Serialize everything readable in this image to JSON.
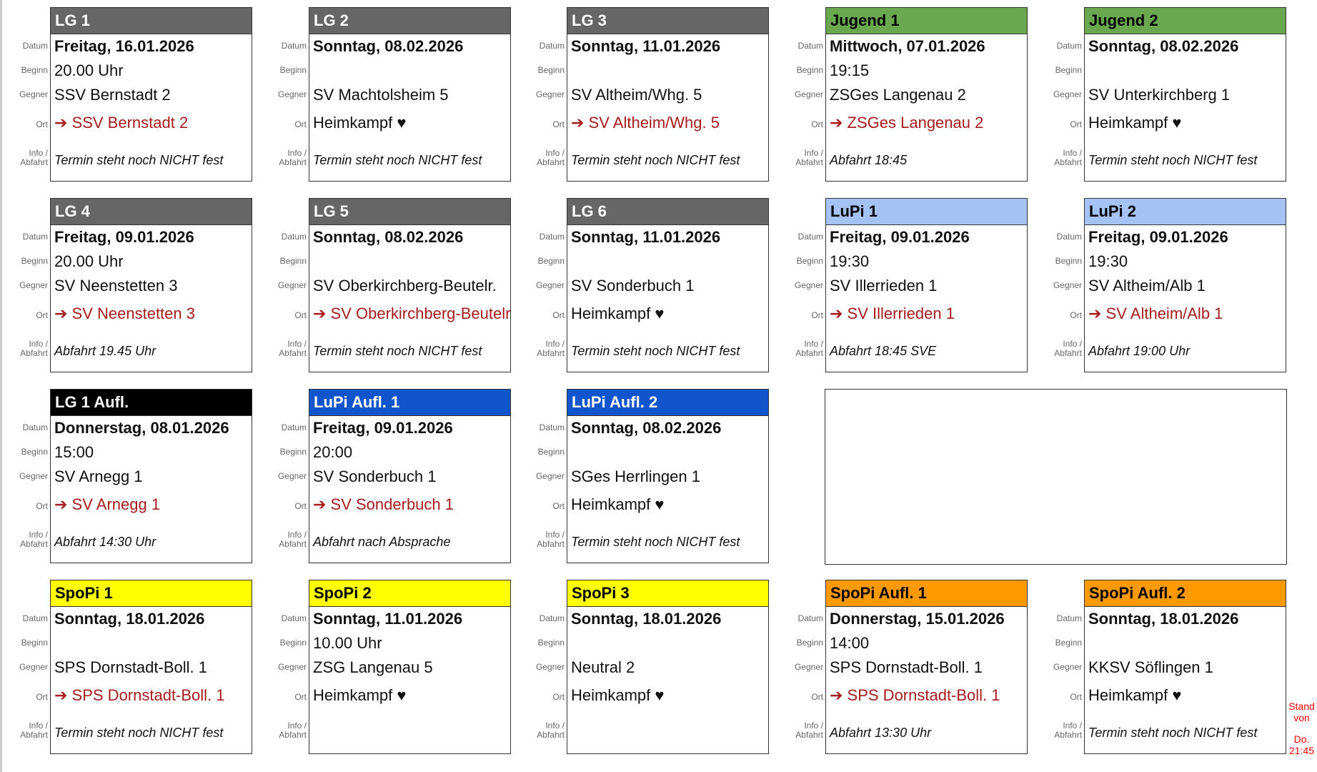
{
  "labels": {
    "date": "Datum",
    "begin": "Beginn",
    "opponent": "Gegner",
    "location": "Ort",
    "info": "Info /",
    "info2": "Abfahrt"
  },
  "cards": [
    {
      "team": "LG 1",
      "header_color": "#666666",
      "header_text": "#ffffff",
      "date": "Freitag, 16.01.2026",
      "begin": "20.00 Uhr",
      "opponent": "SSV Bernstadt 2",
      "location": "➔ SSV Bernstadt 2",
      "away": true,
      "info": "Termin steht noch NICHT fest"
    },
    {
      "team": "LG 2",
      "header_color": "#666666",
      "header_text": "#ffffff",
      "date": "Sonntag, 08.02.2026",
      "begin": "",
      "opponent": "SV Machtolsheim 5",
      "location": "Heimkampf ♥",
      "away": false,
      "info": "Termin steht noch NICHT fest"
    },
    {
      "team": "LG 3",
      "header_color": "#666666",
      "header_text": "#ffffff",
      "date": "Sonntag, 11.01.2026",
      "begin": "",
      "opponent": "SV Altheim/Whg. 5",
      "location": "➔ SV Altheim/Whg. 5",
      "away": true,
      "info": "Termin steht noch NICHT fest"
    },
    {
      "team": "Jugend 1",
      "header_color": "#6aa84f",
      "header_text": "#000000",
      "date": "Mittwoch, 07.01.2026",
      "begin": "19:15",
      "opponent": "ZSGes Langenau 2",
      "location": "➔ ZSGes Langenau 2",
      "away": true,
      "info": "Abfahrt 18:45"
    },
    {
      "team": "Jugend 2",
      "header_color": "#6aa84f",
      "header_text": "#000000",
      "date": "Sonntag, 08.02.2026",
      "begin": "",
      "opponent": "SV Unterkirchberg 1",
      "location": "Heimkampf ♥",
      "away": false,
      "info": "Termin steht noch NICHT fest"
    },
    {
      "team": "LG 4",
      "header_color": "#666666",
      "header_text": "#ffffff",
      "date": "Freitag, 09.01.2026",
      "begin": "20.00 Uhr",
      "opponent": "SV Neenstetten 3",
      "location": "➔ SV Neenstetten 3",
      "away": true,
      "info": "Abfahrt 19.45 Uhr"
    },
    {
      "team": "LG 5",
      "header_color": "#666666",
      "header_text": "#ffffff",
      "date": "Sonntag, 08.02.2026",
      "begin": "",
      "opponent": "SV Oberkirchberg-Beutelr.",
      "location": "➔ SV Oberkirchberg-Beutelr.",
      "away": true,
      "info": "Termin steht noch NICHT fest"
    },
    {
      "team": "LG 6",
      "header_color": "#666666",
      "header_text": "#ffffff",
      "date": "Sonntag, 11.01.2026",
      "begin": "",
      "opponent": "SV Sonderbuch 1",
      "location": "Heimkampf ♥",
      "away": false,
      "info": "Termin steht noch NICHT fest"
    },
    {
      "team": "LuPi 1",
      "header_color": "#a4c2f4",
      "header_text": "#000000",
      "date": "Freitag, 09.01.2026",
      "begin": "19:30",
      "opponent": "SV Illerrieden 1",
      "location": "➔ SV Illerrieden 1",
      "away": true,
      "info": "Abfahrt 18:45 SVE"
    },
    {
      "team": "LuPi 2",
      "header_color": "#a4c2f4",
      "header_text": "#000000",
      "date": "Freitag, 09.01.2026",
      "begin": "19:30",
      "opponent": "SV Altheim/Alb 1",
      "location": "➔ SV Altheim/Alb 1",
      "away": true,
      "info": "Abfahrt 19:00 Uhr"
    },
    {
      "team": "LG 1 Aufl.",
      "header_color": "#000000",
      "header_text": "#ffffff",
      "date": "Donnerstag, 08.01.2026",
      "begin": "15:00",
      "opponent": "SV Arnegg 1",
      "location": "➔ SV Arnegg 1",
      "away": true,
      "info": "Abfahrt 14:30 Uhr"
    },
    {
      "team": "LuPi Aufl. 1",
      "header_color": "#1155cc",
      "header_text": "#ffffff",
      "date": "Freitag, 09.01.2026",
      "begin": "20:00",
      "opponent": "SV Sonderbuch 1",
      "location": "➔ SV Sonderbuch 1",
      "away": true,
      "info": "Abfahrt nach Absprache"
    },
    {
      "team": "LuPi Aufl. 2",
      "header_color": "#1155cc",
      "header_text": "#ffffff",
      "date": "Sonntag, 08.02.2026",
      "begin": "",
      "opponent": "SGes Herrlingen 1",
      "location": "Heimkampf ♥",
      "away": false,
      "info": "Termin steht noch NICHT fest"
    },
    null,
    null,
    {
      "team": "SpoPi 1",
      "header_color": "#ffff00",
      "header_text": "#000000",
      "date": "Sonntag, 18.01.2026",
      "begin": "",
      "opponent": "SPS Dornstadt-Boll. 1",
      "location": "➔ SPS Dornstadt-Boll. 1",
      "away": true,
      "info": "Termin steht noch NICHT fest"
    },
    {
      "team": "SpoPi 2",
      "header_color": "#ffff00",
      "header_text": "#000000",
      "date": "Sonntag, 11.01.2026",
      "begin": "10.00 Uhr",
      "opponent": "ZSG Langenau 5",
      "location": "Heimkampf ♥",
      "away": false,
      "info": ""
    },
    {
      "team": "SpoPi 3",
      "header_color": "#ffff00",
      "header_text": "#000000",
      "date": "Sonntag, 18.01.2026",
      "begin": "",
      "opponent": "Neutral 2",
      "location": "Heimkampf ♥",
      "away": false,
      "info": ""
    },
    {
      "team": "SpoPi Aufl. 1",
      "header_color": "#ff9900",
      "header_text": "#000000",
      "date": "Donnerstag, 15.01.2026",
      "begin": "14:00",
      "opponent": "SPS Dornstadt-Boll. 1",
      "location": "➔ SPS Dornstadt-Boll. 1",
      "away": true,
      "info": "Abfahrt 13:30 Uhr"
    },
    {
      "team": "SpoPi Aufl. 2",
      "header_color": "#ff9900",
      "header_text": "#000000",
      "date": "Sonntag, 18.01.2026",
      "begin": "",
      "opponent": "KKSV Söflingen 1",
      "location": "Heimkampf ♥",
      "away": false,
      "info": "Termin steht noch NICHT fest"
    }
  ],
  "stand": {
    "line1": "Stand",
    "line2": "von",
    "line3": "Do.",
    "line4": "21:45"
  }
}
